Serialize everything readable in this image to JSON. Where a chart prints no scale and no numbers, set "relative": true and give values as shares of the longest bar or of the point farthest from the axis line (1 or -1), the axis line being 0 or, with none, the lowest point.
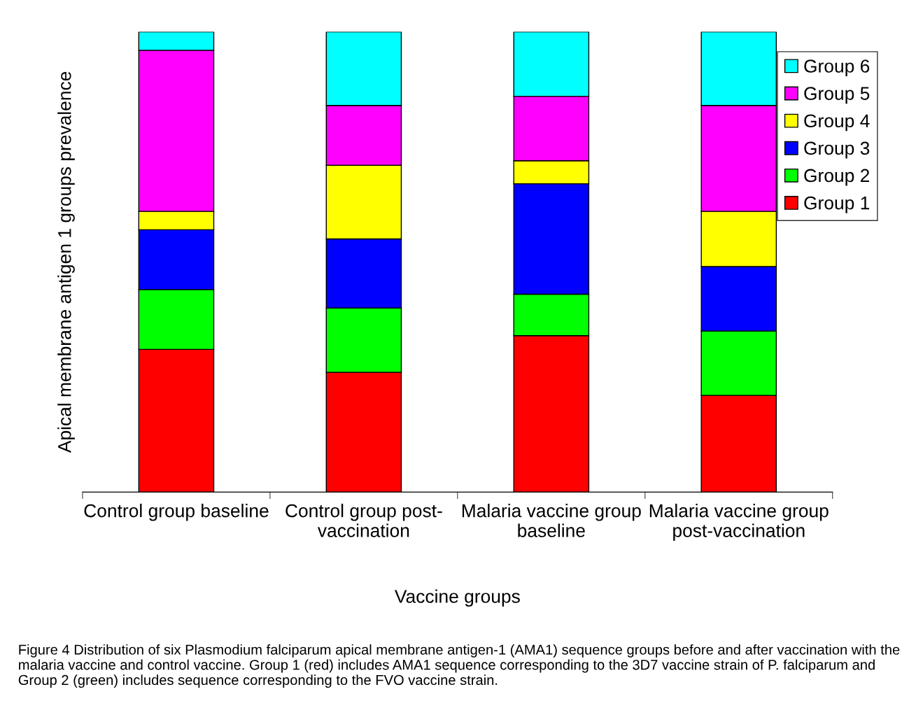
{
  "chart_data": {
    "type": "bar",
    "stacked": true,
    "relative": true,
    "xlabel": "Vaccine groups",
    "ylabel": "Apical membrane antigen 1 groups prevalence",
    "categories": [
      "Control group baseline",
      "Control group post-\nvaccination",
      "Malaria vaccine group\nbaseline",
      "Malaria vaccine group\npost-vaccination"
    ],
    "series": [
      {
        "name": "Group 1",
        "color": "#ff0000",
        "values": [
          0.31,
          0.26,
          0.34,
          0.21
        ]
      },
      {
        "name": "Group 2",
        "color": "#00ff00",
        "values": [
          0.13,
          0.14,
          0.09,
          0.14
        ]
      },
      {
        "name": "Group 3",
        "color": "#0000ff",
        "values": [
          0.13,
          0.15,
          0.24,
          0.14
        ]
      },
      {
        "name": "Group 4",
        "color": "#ffff00",
        "values": [
          0.04,
          0.16,
          0.05,
          0.12
        ]
      },
      {
        "name": "Group 5",
        "color": "#ff00ff",
        "values": [
          0.35,
          0.13,
          0.14,
          0.23
        ]
      },
      {
        "name": "Group 6",
        "color": "#00ffff",
        "values": [
          0.04,
          0.16,
          0.14,
          0.16
        ]
      }
    ],
    "legend": "top right",
    "grid": false,
    "annotations": [
      "Figure 4 Distribution of six Plasmodium falciparum apical membrane antigen-1 (AMA1) sequence groups before and after vaccination with the malaria vaccine and control vaccine. Group 1 (red) includes AMA1 sequence corresponding to the 3D7 vaccine strain of P. falciparum and Group 2 (green) includes sequence corresponding to the FVO vaccine strain."
    ]
  }
}
